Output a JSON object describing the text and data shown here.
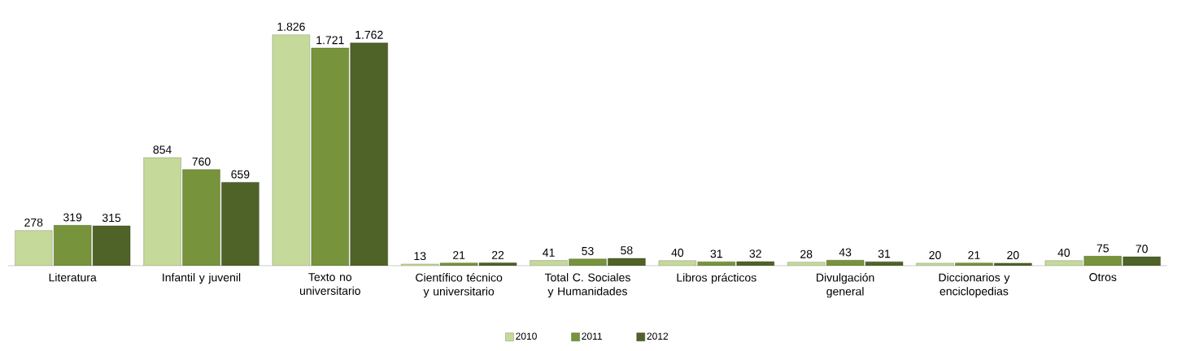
{
  "chart_data": {
    "type": "bar",
    "categories": [
      "Literatura",
      "Infantil y juvenil",
      "Texto no universitario",
      "Científico técnico y universitario",
      "Total C. Sociales y Humanidades",
      "Libros prácticos",
      "Divulgación general",
      "Diccionarios y enciclopedias",
      "Otros"
    ],
    "series": [
      {
        "name": "2010",
        "color": "#c5d99b",
        "values": [
          278,
          854,
          1826,
          13,
          41,
          40,
          28,
          20,
          40
        ],
        "value_labels": [
          "278",
          "854",
          "1.826",
          "13",
          "41",
          "40",
          "28",
          "20",
          "40"
        ]
      },
      {
        "name": "2011",
        "color": "#77933c",
        "values": [
          319,
          760,
          1721,
          21,
          53,
          31,
          43,
          21,
          75
        ],
        "value_labels": [
          "319",
          "760",
          "1.721",
          "21",
          "53",
          "31",
          "43",
          "21",
          "75"
        ]
      },
      {
        "name": "2012",
        "color": "#4f6228",
        "values": [
          315,
          659,
          1762,
          22,
          58,
          32,
          31,
          20,
          70
        ],
        "value_labels": [
          "315",
          "659",
          "1.762",
          "22",
          "58",
          "32",
          "31",
          "20",
          "70"
        ]
      }
    ],
    "legend": "bottom"
  }
}
